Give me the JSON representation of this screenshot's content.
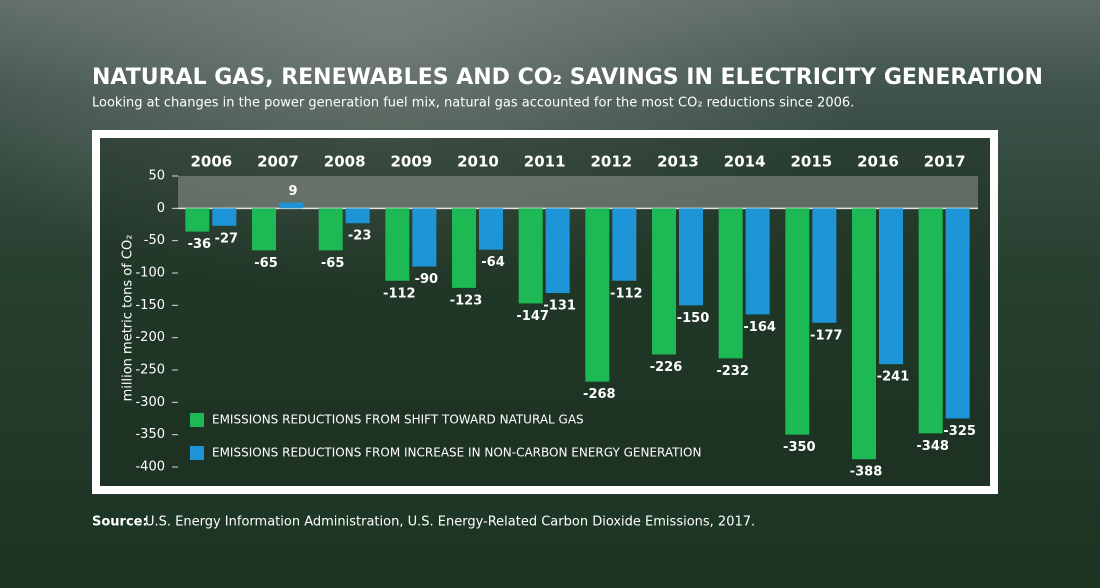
{
  "chart_data": {
    "type": "bar",
    "title": "NATURAL GAS, RENEWABLES AND CO₂ SAVINGS IN ELECTRICITY GENERATION",
    "subtitle": "Looking at changes in the power generation fuel mix, natural gas accounted for the most CO₂ reductions since 2006.",
    "y_label": "million metric tons of CO₂",
    "categories": [
      "2006",
      "2007",
      "2008",
      "2009",
      "2010",
      "2011",
      "2012",
      "2013",
      "2014",
      "2015",
      "2016",
      "2017"
    ],
    "series": [
      {
        "name": "EMISSIONS REDUCTIONS FROM SHIFT TOWARD NATURAL GAS",
        "color": "#1db954",
        "values": [
          -36,
          -65,
          -65,
          -112,
          -123,
          -147,
          -268,
          -226,
          -232,
          -350,
          -388,
          -348
        ]
      },
      {
        "name": "EMISSIONS REDUCTIONS FROM INCREASE IN NON-CARBON ENERGY GENERATION",
        "color": "#1e95d6",
        "values": [
          -27,
          9,
          -23,
          -90,
          -64,
          -131,
          -112,
          -150,
          -164,
          -177,
          -241,
          -325
        ]
      }
    ],
    "ylim": [
      -400,
      50
    ],
    "yticks": [
      50,
      0,
      -50,
      -100,
      -150,
      -200,
      -250,
      -300,
      -350,
      -400
    ],
    "grid": false,
    "source_label": "Source:",
    "source": "U.S. Energy Information Administration, U.S. Energy-Related Carbon Dioxide Emissions, 2017."
  }
}
